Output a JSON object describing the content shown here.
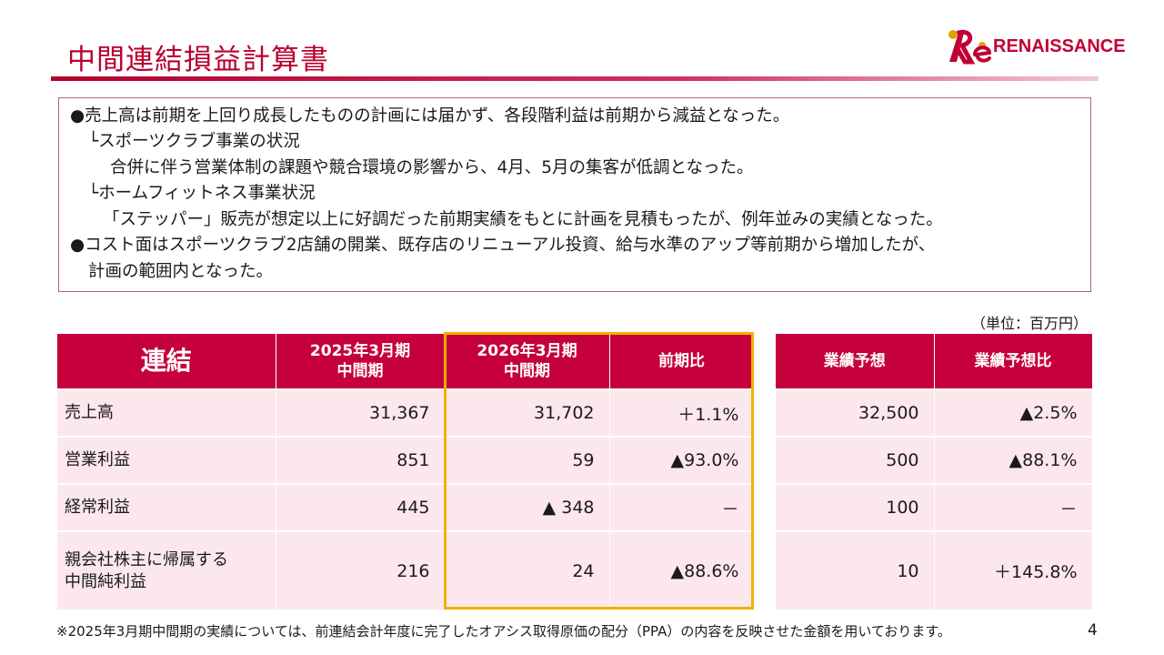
{
  "header": {
    "title": "中間連結損益計算書",
    "logo_text": "RENAISSANCE",
    "logo_mark_text": "Re"
  },
  "summary": {
    "lines": [
      "●売上高は前期を上回り成長したものの計画には届かず、各段階利益は前期から減益となった。",
      "└スポーツクラブ事業の状況",
      "合併に伴う営業体制の課題や競合環境の影響から、4月、5月の集客が低調となった。",
      "└ホームフィットネス事業状況",
      "「ステッパー」販売が想定以上に好調だった前期実績をもとに計画を見積もったが、例年並みの実績となった。",
      "●コスト面はスポーツクラブ2店舗の開業、既存店のリニューアル投資、給与水準のアップ等前期から増加したが、",
      "計画の範囲内となった。"
    ]
  },
  "unit_label": "（単位：百万円）",
  "table": {
    "headers": {
      "label": "連結",
      "prev_l1": "2025年3月期",
      "prev_l2": "中間期",
      "curr_l1": "2026年3月期",
      "curr_l2": "中間期",
      "yoy": "前期比",
      "forecast": "業績予想",
      "vs_forecast": "業績予想比"
    },
    "rows": [
      {
        "label": "売上高",
        "label2": "",
        "prev": "31,367",
        "curr": "31,702",
        "yoy": "＋1.1%",
        "forecast": "32,500",
        "vs_forecast": "▲2.5%"
      },
      {
        "label": "営業利益",
        "label2": "",
        "prev": "851",
        "curr": "59",
        "yoy": "▲93.0%",
        "forecast": "500",
        "vs_forecast": "▲88.1%"
      },
      {
        "label": "経常利益",
        "label2": "",
        "prev": "445",
        "curr": "▲ 348",
        "yoy": "－",
        "forecast": "100",
        "vs_forecast": "－"
      },
      {
        "label": "親会社株主に帰属する",
        "label2": "中間純利益",
        "prev": "216",
        "curr": "24",
        "yoy": "▲88.6%",
        "forecast": "10",
        "vs_forecast": "＋145.8%"
      }
    ]
  },
  "footnote": "※2025年3月期中間期の実績については、前連結会計年度に完了したオアシス取得原価の配分（PPA）の内容を反映させた金額を用いております。",
  "page_number": "4",
  "colors": {
    "brand": "#c5003d",
    "title": "#b8002f",
    "row_bg": "#fce8ec",
    "highlight_border": "#f0b000"
  }
}
